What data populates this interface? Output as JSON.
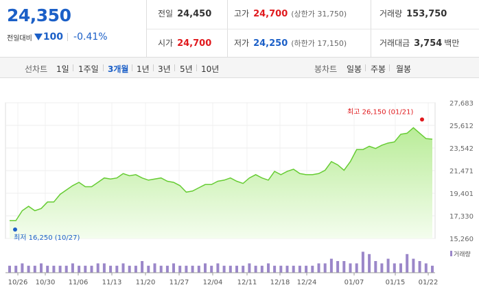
{
  "summary": {
    "price": "24,350",
    "change_label": "전일대비",
    "change_value": "100",
    "change_pct": "-0.41%",
    "prev_close_label": "전일",
    "prev_close": "24,450",
    "open_label": "시가",
    "open": "24,700",
    "high_label": "고가",
    "high": "24,700",
    "upper_limit": "(상한가 31,750)",
    "low_label": "저가",
    "low": "24,250",
    "lower_limit": "(하한가 17,150)",
    "volume_label": "거래량",
    "volume": "153,750",
    "amount_label": "거래대금",
    "amount": "3,754",
    "amount_unit": "백만"
  },
  "toolbar": {
    "line_chart_label": "선차트",
    "periods": [
      "1일",
      "1주일",
      "3개월",
      "1년",
      "3년",
      "5년",
      "10년"
    ],
    "active_period": "3개월",
    "candle_chart_label": "봉차트",
    "candle_periods": [
      "일봉",
      "주봉",
      "월봉"
    ]
  },
  "colors": {
    "up": "#e0191d",
    "down": "#1b5fc7",
    "line": "#66cc33",
    "area": "#d8f5c4",
    "volume": "#9b87c9"
  },
  "chart_data": {
    "type": "area",
    "x_ticks": [
      "10/26",
      "10/30",
      "11/06",
      "11/13",
      "11/20",
      "11/27",
      "12/04",
      "12/11",
      "12/18",
      "12/24",
      "01/07",
      "01/15",
      "01/22"
    ],
    "y_ticks": [
      "27,683",
      "25,612",
      "23,542",
      "21,471",
      "19,401",
      "17,330",
      "15,260"
    ],
    "ylim": [
      15260,
      27683
    ],
    "values": [
      16900,
      16900,
      17800,
      18200,
      17800,
      18000,
      18600,
      18600,
      19300,
      19700,
      20100,
      20400,
      20000,
      20000,
      20400,
      20800,
      20700,
      20800,
      21200,
      21000,
      21100,
      20800,
      20600,
      20700,
      20800,
      20500,
      20400,
      20100,
      19500,
      19600,
      19900,
      20200,
      20200,
      20500,
      20600,
      20800,
      20500,
      20300,
      20800,
      21100,
      20800,
      20600,
      21400,
      21100,
      21400,
      21600,
      21200,
      21100,
      21100,
      21200,
      21500,
      22300,
      22000,
      21500,
      22300,
      23400,
      23400,
      23700,
      23500,
      23800,
      24000,
      24100,
      24800,
      24900,
      25400,
      24900,
      24400,
      24350
    ],
    "high_marker": {
      "label": "최고 26,150 (01/21)",
      "value": 26150
    },
    "low_marker": {
      "label": "최저 16,250 (10/27)",
      "value": 16250
    },
    "volume_label": "거래량",
    "volumes": [
      3,
      3,
      4,
      3,
      3,
      4,
      3,
      3,
      3,
      3,
      4,
      3,
      3,
      3,
      4,
      4,
      3,
      3,
      4,
      3,
      3,
      5,
      3,
      4,
      3,
      3,
      4,
      3,
      3,
      3,
      3,
      4,
      3,
      4,
      3,
      3,
      3,
      3,
      4,
      3,
      3,
      4,
      3,
      3,
      3,
      3,
      3,
      3,
      3,
      4,
      4,
      6,
      5,
      5,
      4,
      4,
      9,
      8,
      5,
      4,
      6,
      4,
      4,
      8,
      6,
      5,
      4,
      3
    ]
  }
}
